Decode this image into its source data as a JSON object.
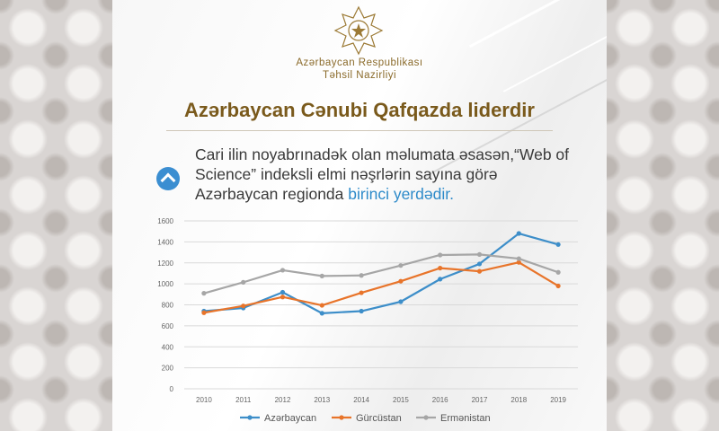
{
  "header": {
    "ministry_line1": "Azərbaycan Respublikası",
    "ministry_line2": "Təhsil Nazirliyi"
  },
  "headline": "Azərbaycan Cənubi Qafqazda liderdir",
  "description": {
    "text_before": "Cari ilin noyabrınadək olan məlumata əsasən,“Web of Science” indeksli elmi nəşrlərin sayına görə Azərbaycan regionda ",
    "highlight": "birinci yerdədir."
  },
  "colors": {
    "accent": "#3b8ed1",
    "title": "#7a5a1c",
    "gold": "#8a6a2a"
  },
  "icons": {
    "emblem": "state-emblem-icon",
    "arrow": "chevron-up-icon"
  },
  "chart_data": {
    "type": "line",
    "title": "",
    "xlabel": "",
    "ylabel": "",
    "x": [
      "2010",
      "2011",
      "2012",
      "2013",
      "2014",
      "2015",
      "2016",
      "2017",
      "2018",
      "2019"
    ],
    "ylim": [
      0,
      1600
    ],
    "yticks": [
      "0",
      "200",
      "400",
      "600",
      "800",
      "1000",
      "1200",
      "1400",
      "1600"
    ],
    "grid": true,
    "legend": "bottom",
    "series": [
      {
        "name": "Azərbaycan",
        "color": "#3d8ec9",
        "values": [
          740,
          770,
          920,
          720,
          740,
          830,
          1045,
          1190,
          1480,
          1375
        ]
      },
      {
        "name": "Gürcüstan",
        "color": "#e8742a",
        "values": [
          725,
          790,
          875,
          795,
          915,
          1025,
          1150,
          1120,
          1205,
          980
        ]
      },
      {
        "name": "Ermənistan",
        "color": "#a6a6a6",
        "values": [
          910,
          1015,
          1130,
          1075,
          1080,
          1175,
          1275,
          1280,
          1240,
          1110
        ]
      }
    ]
  }
}
